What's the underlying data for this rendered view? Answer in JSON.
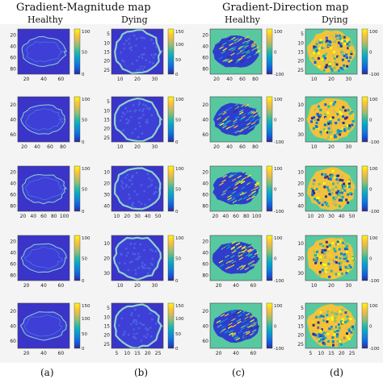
{
  "titles": {
    "magnitude": "Gradient-Magnitude map",
    "direction": "Gradient-Direction map"
  },
  "columns": {
    "a": "Healthy",
    "b": "Dying",
    "c": "Healthy",
    "d": "Dying"
  },
  "captions": [
    "(a)",
    "(b)",
    "(c)",
    "(d)"
  ],
  "colors": {
    "background_blue": "#3b34c9",
    "outline": "#8fd3c8",
    "direction_bg": "#58c8a0",
    "colormap": [
      "#352a87",
      "#0f5cdd",
      "#1481d6",
      "#06a4ca",
      "#2eb7a4",
      "#87bf77",
      "#d1bb59",
      "#fec832",
      "#f9fb0e"
    ]
  },
  "rows": [
    {
      "a": {
        "yticks": [
          "20",
          "40",
          "60",
          "80"
        ],
        "xticks": [
          "20",
          "40",
          "60"
        ],
        "cbar": [
          "100",
          "50",
          "0"
        ]
      },
      "b": {
        "yticks": [
          "5",
          "10",
          "15",
          "20",
          "25"
        ],
        "xticks": [
          "10",
          "20",
          "30"
        ],
        "cbar": [
          "150",
          "100",
          "50",
          "0"
        ]
      },
      "c": {
        "yticks": [
          "20",
          "40",
          "60",
          "80"
        ],
        "xticks": [
          "20",
          "40",
          "60",
          "80"
        ],
        "cbar": [
          "100",
          "0",
          "-100"
        ]
      },
      "d": {
        "yticks": [
          "5",
          "10",
          "15",
          "20",
          "25"
        ],
        "xticks": [
          "10",
          "20",
          "30"
        ],
        "cbar": [
          "100",
          "0",
          "-100"
        ]
      }
    },
    {
      "a": {
        "yticks": [
          "20",
          "40",
          "60"
        ],
        "xticks": [
          "20",
          "40",
          "60",
          "80"
        ],
        "cbar": [
          "100",
          "50",
          "0"
        ]
      },
      "b": {
        "yticks": [
          "5",
          "10",
          "15",
          "20",
          "25"
        ],
        "xticks": [
          "10",
          "20",
          "30"
        ],
        "cbar": [
          "100",
          "50",
          "0"
        ]
      },
      "c": {
        "yticks": [
          "20",
          "40",
          "60"
        ],
        "xticks": [
          "20",
          "40",
          "60",
          "80"
        ],
        "cbar": [
          "100",
          "0",
          "-100"
        ]
      },
      "d": {
        "yticks": [
          "10",
          "20",
          "30"
        ],
        "xticks": [
          "10",
          "20",
          "30"
        ],
        "cbar": [
          "100",
          "0",
          "-100"
        ]
      }
    },
    {
      "a": {
        "yticks": [
          "20",
          "40",
          "60",
          "80"
        ],
        "xticks": [
          "20",
          "40",
          "60",
          "80",
          "100"
        ],
        "cbar": [
          "100",
          "50",
          "0"
        ]
      },
      "b": {
        "yticks": [
          "10",
          "20",
          "30",
          "40"
        ],
        "xticks": [
          "10",
          "20",
          "30",
          "40",
          "50"
        ],
        "cbar": [
          "100",
          "50",
          "0"
        ]
      },
      "c": {
        "yticks": [
          "20",
          "40",
          "60",
          "80"
        ],
        "xticks": [
          "20",
          "40",
          "60",
          "80",
          "100"
        ],
        "cbar": [
          "100",
          "0",
          "-100"
        ]
      },
      "d": {
        "yticks": [
          "10",
          "20",
          "30",
          "40"
        ],
        "xticks": [
          "10",
          "20",
          "30",
          "40",
          "50"
        ],
        "cbar": [
          "100",
          "0",
          "-100"
        ]
      }
    },
    {
      "a": {
        "yticks": [
          "20",
          "40",
          "60",
          "80"
        ],
        "xticks": [
          "20",
          "40",
          "60"
        ],
        "cbar": [
          "100",
          "50",
          "0"
        ]
      },
      "b": {
        "yticks": [
          "10",
          "20",
          "30"
        ],
        "xticks": [
          "10",
          "20",
          "30"
        ],
        "cbar": [
          "100",
          "50",
          "0"
        ]
      },
      "c": {
        "yticks": [
          "20",
          "40",
          "60",
          "80"
        ],
        "xticks": [
          "20",
          "40",
          "60"
        ],
        "cbar": [
          "100",
          "0",
          "-100"
        ]
      },
      "d": {
        "yticks": [
          "10",
          "20",
          "30"
        ],
        "xticks": [
          "10",
          "20",
          "30"
        ],
        "cbar": [
          "100",
          "0",
          "-100"
        ]
      }
    },
    {
      "a": {
        "yticks": [
          "20",
          "40",
          "60"
        ],
        "xticks": [
          "20",
          "40",
          "60"
        ],
        "cbar": [
          "150",
          "100",
          "50",
          "0"
        ]
      },
      "b": {
        "yticks": [
          "5",
          "10",
          "15",
          "20",
          "25"
        ],
        "xticks": [
          "5",
          "10",
          "15",
          "20",
          "25"
        ],
        "cbar": [
          "150",
          "100",
          "50",
          "0"
        ]
      },
      "c": {
        "yticks": [
          "20",
          "40",
          "60"
        ],
        "xticks": [
          "20",
          "40",
          "60"
        ],
        "cbar": [
          "100",
          "0",
          "-100"
        ]
      },
      "d": {
        "yticks": [
          "5",
          "10",
          "15",
          "20",
          "25"
        ],
        "xticks": [
          "5",
          "10",
          "15",
          "20",
          "25"
        ],
        "cbar": [
          "100",
          "0",
          "-100"
        ]
      }
    }
  ]
}
